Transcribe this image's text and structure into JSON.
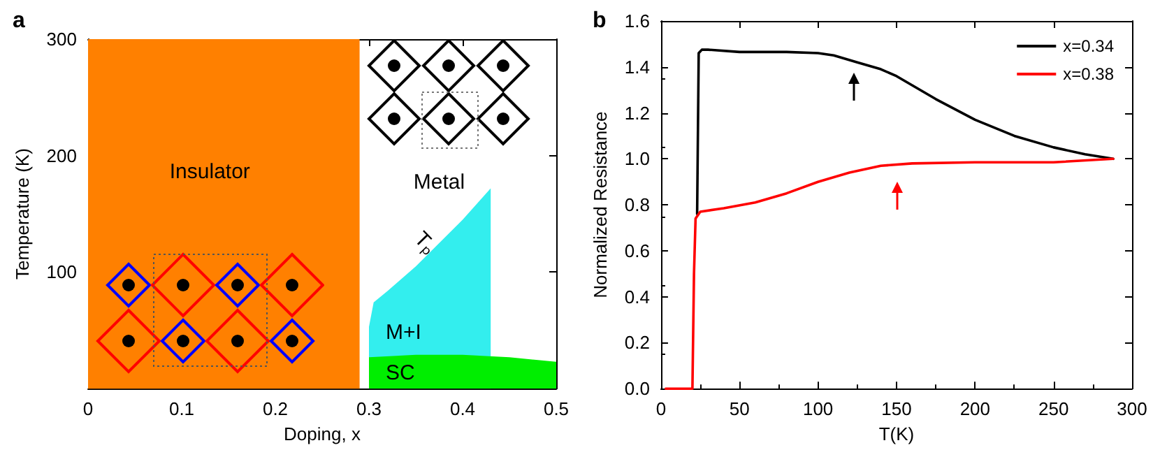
{
  "chart_data": [
    {
      "type": "area",
      "title": "a",
      "xlabel": "Doping, x",
      "ylabel": "Temperature (K)",
      "xlim": [
        0,
        0.5
      ],
      "xticks": [
        0,
        0.1,
        0.2,
        0.3,
        0.4,
        0.5
      ],
      "ylim": [
        0,
        300
      ],
      "yticks": [
        100,
        200,
        300
      ],
      "grid": false,
      "legend": false,
      "bands": [
        {
          "axis": "x",
          "from": 0,
          "to": 0.29,
          "label": "Insulator",
          "color": "#ff8000"
        }
      ],
      "series": [
        {
          "name": "M+I",
          "color": "#33eeee",
          "x": [
            0.3,
            0.305,
            0.32,
            0.35,
            0.4,
            0.43
          ],
          "values": [
            53,
            74,
            84,
            105,
            145,
            172
          ]
        },
        {
          "name": "SC",
          "color": "#00ee00",
          "x": [
            0.3,
            0.35,
            0.4,
            0.45,
            0.5
          ],
          "values": [
            27,
            29,
            29,
            27,
            23
          ]
        }
      ],
      "annotations": [
        "Metal",
        "Tₚ"
      ]
    },
    {
      "type": "line",
      "title": "b",
      "xlabel": "T(K)",
      "ylabel": "Normalized Resistance",
      "xlim": [
        0,
        300
      ],
      "xticks": [
        0,
        50,
        100,
        150,
        200,
        250,
        300
      ],
      "ylim": [
        0,
        1.6
      ],
      "yticks": [
        {
          "value": 0,
          "label": "0.0"
        },
        {
          "value": 0.2,
          "label": "0.2"
        },
        {
          "value": 0.4,
          "label": "0.4"
        },
        {
          "value": 0.6,
          "label": "0.6"
        },
        {
          "value": 0.8,
          "label": "0.8"
        },
        {
          "value": 1,
          "label": "1.0"
        },
        {
          "value": 1.2,
          "label": "1.2"
        },
        {
          "value": 1.4,
          "label": "1.4"
        },
        {
          "value": 1.6,
          "label": "1.6"
        }
      ],
      "grid": false,
      "legend": "top right",
      "marker": "none",
      "line_style": "solid",
      "series": [
        {
          "name": "x=0.34",
          "color": "#000000",
          "x": [
            23,
            24,
            26,
            30,
            50,
            80,
            100,
            110,
            125,
            140,
            150,
            175,
            200,
            225,
            250,
            270,
            288
          ],
          "values": [
            0.76,
            1.46,
            1.475,
            1.475,
            1.465,
            1.465,
            1.46,
            1.45,
            1.42,
            1.39,
            1.36,
            1.26,
            1.17,
            1.1,
            1.05,
            1.02,
            1.0
          ]
        },
        {
          "name": "x=0.38",
          "color": "#ff0000",
          "x": [
            3,
            20,
            21,
            22,
            25,
            40,
            60,
            80,
            100,
            120,
            140,
            160,
            200,
            250,
            288
          ],
          "values": [
            0,
            0,
            0.5,
            0.74,
            0.77,
            0.785,
            0.81,
            0.85,
            0.9,
            0.94,
            0.97,
            0.98,
            0.985,
            0.985,
            1.0
          ]
        }
      ]
    }
  ]
}
